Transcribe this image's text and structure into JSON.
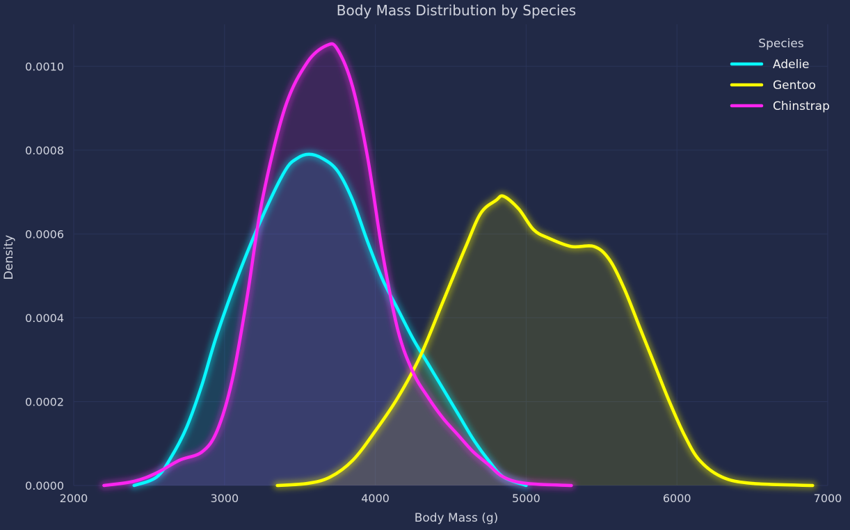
{
  "colors": {
    "background": "#212946",
    "grid": "#2A3459",
    "text": "#D0D3DE",
    "Adelie": "#08F7FE",
    "Gentoo": "#FFFF00",
    "Chinstrap": "#FE24F1"
  },
  "chart_data": {
    "type": "line",
    "title": "Body Mass Distribution by Species",
    "xlabel": "Body Mass (g)",
    "ylabel": "Density",
    "xlim": [
      2000,
      7000
    ],
    "ylim": [
      0,
      0.0011
    ],
    "x_ticks": [
      2000,
      3000,
      4000,
      5000,
      6000,
      7000
    ],
    "y_ticks": [
      0.0,
      0.0002,
      0.0004,
      0.0006,
      0.0008,
      0.001
    ],
    "y_tick_labels": [
      "0.0000",
      "0.0002",
      "0.0004",
      "0.0006",
      "0.0008",
      "0.0010"
    ],
    "grid": true,
    "fill_under_curves": true,
    "legend": {
      "title": "Species",
      "position": "top-right"
    },
    "series": [
      {
        "name": "Adelie",
        "points": [
          [
            2400,
            0.0
          ],
          [
            2550,
            2e-05
          ],
          [
            2650,
            7e-05
          ],
          [
            2750,
            0.00014
          ],
          [
            2850,
            0.00024
          ],
          [
            2950,
            0.00036
          ],
          [
            3100,
            0.00051
          ],
          [
            3250,
            0.00064
          ],
          [
            3400,
            0.00075
          ],
          [
            3480,
            0.00078
          ],
          [
            3560,
            0.00079
          ],
          [
            3650,
            0.00078
          ],
          [
            3750,
            0.00075
          ],
          [
            3850,
            0.00068
          ],
          [
            3950,
            0.00058
          ],
          [
            4050,
            0.00049
          ],
          [
            4150,
            0.00042
          ],
          [
            4250,
            0.00035
          ],
          [
            4350,
            0.00029
          ],
          [
            4450,
            0.00023
          ],
          [
            4550,
            0.00017
          ],
          [
            4650,
            0.00011
          ],
          [
            4750,
            6e-05
          ],
          [
            4850,
            2e-05
          ],
          [
            5000,
            0.0
          ]
        ]
      },
      {
        "name": "Gentoo",
        "points": [
          [
            3350,
            0.0
          ],
          [
            3550,
            5e-06
          ],
          [
            3700,
            2e-05
          ],
          [
            3850,
            6e-05
          ],
          [
            4000,
            0.00013
          ],
          [
            4150,
            0.00021
          ],
          [
            4300,
            0.00031
          ],
          [
            4450,
            0.00044
          ],
          [
            4600,
            0.00057
          ],
          [
            4700,
            0.00065
          ],
          [
            4800,
            0.00068
          ],
          [
            4850,
            0.00069
          ],
          [
            4950,
            0.00066
          ],
          [
            5050,
            0.00061
          ],
          [
            5150,
            0.00059
          ],
          [
            5300,
            0.00057
          ],
          [
            5450,
            0.00057
          ],
          [
            5550,
            0.00054
          ],
          [
            5650,
            0.00047
          ],
          [
            5750,
            0.00038
          ],
          [
            5850,
            0.00029
          ],
          [
            5950,
            0.0002
          ],
          [
            6050,
            0.00012
          ],
          [
            6150,
            6e-05
          ],
          [
            6300,
            2e-05
          ],
          [
            6500,
            5e-06
          ],
          [
            6900,
            0.0
          ]
        ]
      },
      {
        "name": "Chinstrap",
        "points": [
          [
            2200,
            0.0
          ],
          [
            2400,
            1e-05
          ],
          [
            2550,
            3e-05
          ],
          [
            2700,
            6e-05
          ],
          [
            2850,
            8e-05
          ],
          [
            2950,
            0.00013
          ],
          [
            3050,
            0.00025
          ],
          [
            3150,
            0.00045
          ],
          [
            3250,
            0.00068
          ],
          [
            3400,
            0.0009
          ],
          [
            3550,
            0.00101
          ],
          [
            3680,
            0.00105
          ],
          [
            3750,
            0.00104
          ],
          [
            3850,
            0.00095
          ],
          [
            3950,
            0.00078
          ],
          [
            4050,
            0.00055
          ],
          [
            4150,
            0.00037
          ],
          [
            4250,
            0.00027
          ],
          [
            4350,
            0.00021
          ],
          [
            4450,
            0.00016
          ],
          [
            4550,
            0.00012
          ],
          [
            4650,
            8e-05
          ],
          [
            4750,
            5e-05
          ],
          [
            4850,
            2e-05
          ],
          [
            5000,
            5e-06
          ],
          [
            5300,
            0.0
          ]
        ]
      }
    ]
  }
}
